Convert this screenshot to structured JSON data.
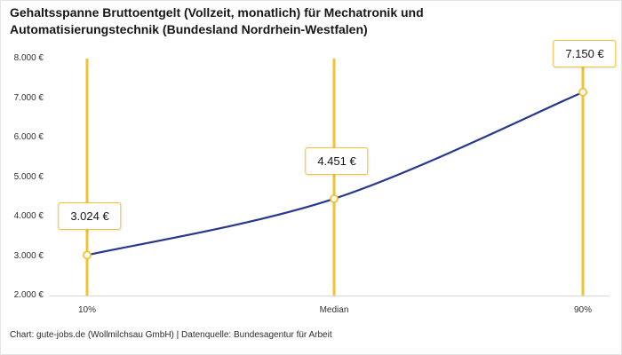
{
  "footer": {
    "text": "Chart: gute-jobs.de (Wollmilchsau GmbH) | Datenquelle: Bundesagentur für Arbeit"
  },
  "chart_data": {
    "type": "line",
    "title": "Gehaltsspanne Bruttoentgelt (Vollzeit, monatlich) für Mechatronik und Automatisierungstechnik (Bundesland Nordrhein-Westfalen)",
    "categories": [
      "10%",
      "Median",
      "90%"
    ],
    "values": [
      3024,
      4451,
      7150
    ],
    "value_labels": [
      "3.024 €",
      "4.451 €",
      "7.150 €"
    ],
    "ylim": [
      2000,
      8000
    ],
    "ytick_step": 1000,
    "ytick_labels": [
      "8.000 €",
      "7.000 €",
      "6.000 €",
      "5.000 €",
      "4.000 €",
      "3.000 €",
      "2.000 €"
    ],
    "grid": "off",
    "legend": "none",
    "xlabel": "",
    "ylabel": "",
    "colors": {
      "line": "#28388c",
      "accent": "#f2c230",
      "axis": "#d8d8d8",
      "marker_fill": "#ffffff"
    }
  }
}
